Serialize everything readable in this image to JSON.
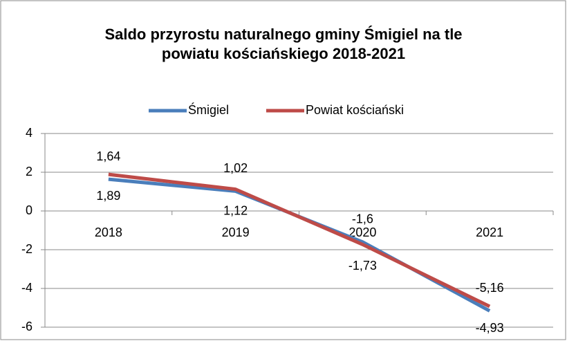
{
  "chart_data": {
    "type": "line",
    "title": "Saldo przyrostu naturalnego gminy Śmigiel na tle powiatu kościańskiego 2018-2021",
    "categories": [
      "2018",
      "2019",
      "2020",
      "2021"
    ],
    "series": [
      {
        "name": "Śmigiel",
        "color": "#4a7ebb",
        "values": [
          1.64,
          1.02,
          -1.6,
          -5.16
        ],
        "value_labels": [
          "1,64",
          "1,02",
          "-1,6",
          "-5,16"
        ]
      },
      {
        "name": "Powiat kościański",
        "color": "#be4b48",
        "values": [
          1.89,
          1.12,
          -1.73,
          -4.93
        ],
        "value_labels": [
          "1,89",
          "1,12",
          "-1,73",
          "-4,93"
        ]
      }
    ],
    "ylim": [
      -6,
      4
    ],
    "yticks": [
      -6,
      -4,
      -2,
      0,
      2,
      4
    ],
    "grid": true,
    "legend": "top"
  }
}
